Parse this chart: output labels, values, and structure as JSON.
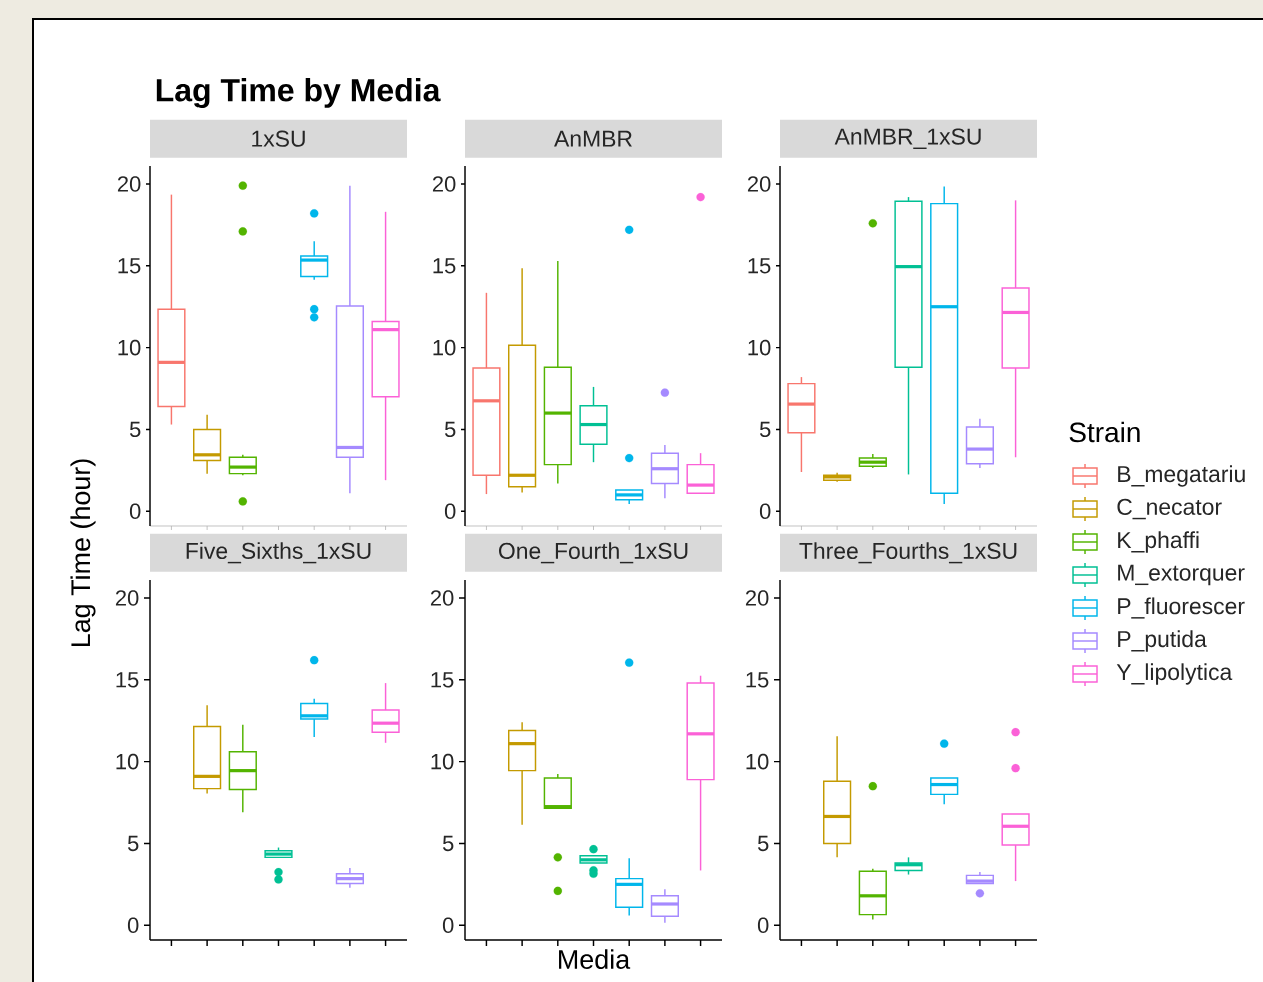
{
  "chart_data": [
    {
      "type": "box",
      "title": "1xSU",
      "ylabel": "Lag Time (hour)",
      "annotations": [
        "Lag Time by Media"
      ],
      "categories": [
        null,
        null,
        null,
        null,
        null,
        null,
        null
      ],
      "ylim": [
        -0.9,
        21.1
      ],
      "yticks": [
        0,
        5,
        10,
        15,
        20
      ],
      "tick_labels": "y",
      "legend": false,
      "series": [
        {
          "color": "#f8766d",
          "boxes": [
            {
              "low": 5.3,
              "q1": 6.4,
              "median": 9.1,
              "q3": 12.35,
              "high": 19.35
            },
            null,
            null,
            null,
            null,
            null,
            null
          ]
        },
        {
          "color": "#c49a00",
          "boxes": [
            null,
            {
              "low": 2.3,
              "q1": 3.1,
              "median": 3.45,
              "q3": 5.0,
              "high": 5.9
            },
            null,
            null,
            null,
            null,
            null
          ]
        },
        {
          "color": "#53b400",
          "boxes": [
            null,
            null,
            {
              "low": 2.2,
              "q1": 2.3,
              "median": 2.7,
              "q3": 3.3,
              "high": 3.45,
              "outliers": [
                19.9,
                17.1,
                0.6
              ]
            },
            null,
            null,
            null,
            null
          ]
        },
        {
          "color": "#00b6eb",
          "boxes": [
            null,
            null,
            null,
            null,
            {
              "low": 14.15,
              "q1": 14.35,
              "median": 15.35,
              "q3": 15.6,
              "high": 16.5,
              "outliers": [
                18.2,
                12.35,
                11.85
              ]
            },
            null,
            null
          ]
        },
        {
          "color": "#a58aff",
          "boxes": [
            null,
            null,
            null,
            null,
            null,
            {
              "low": 1.1,
              "q1": 3.3,
              "median": 3.9,
              "q3": 12.55,
              "high": 19.9
            },
            null
          ]
        },
        {
          "color": "#fb61d7",
          "boxes": [
            null,
            null,
            null,
            null,
            null,
            null,
            {
              "low": 1.9,
              "q1": 7.0,
              "median": 11.1,
              "q3": 11.6,
              "high": 18.3
            }
          ]
        }
      ]
    },
    {
      "type": "box",
      "title": "AnMBR",
      "categories": [
        null,
        null,
        null,
        null,
        null,
        null,
        null
      ],
      "ylim": [
        -0.9,
        21.1
      ],
      "yticks": [
        0,
        5,
        10,
        15,
        20
      ],
      "tick_labels": "y",
      "legend": false,
      "series": [
        {
          "color": "#f8766d",
          "boxes": [
            {
              "low": 1.05,
              "q1": 2.2,
              "median": 6.75,
              "q3": 8.75,
              "high": 13.35
            },
            null,
            null,
            null,
            null,
            null,
            null
          ]
        },
        {
          "color": "#c49a00",
          "boxes": [
            null,
            {
              "low": 1.15,
              "q1": 1.5,
              "median": 2.2,
              "q3": 10.15,
              "high": 14.85
            },
            null,
            null,
            null,
            null,
            null
          ]
        },
        {
          "color": "#53b400",
          "boxes": [
            null,
            null,
            {
              "low": 1.7,
              "q1": 2.85,
              "median": 6.0,
              "q3": 8.8,
              "high": 15.3
            },
            null,
            null,
            null,
            null
          ]
        },
        {
          "color": "#00c094",
          "boxes": [
            null,
            null,
            null,
            {
              "low": 3.0,
              "q1": 4.1,
              "median": 5.3,
              "q3": 6.45,
              "high": 7.6
            },
            null,
            null,
            null
          ]
        },
        {
          "color": "#00b6eb",
          "boxes": [
            null,
            null,
            null,
            null,
            {
              "low": 0.45,
              "q1": 0.7,
              "median": 1.0,
              "q3": 1.3,
              "high": 1.3,
              "outliers": [
                17.2,
                3.25
              ]
            },
            null,
            null
          ]
        },
        {
          "color": "#a58aff",
          "boxes": [
            null,
            null,
            null,
            null,
            null,
            {
              "low": 0.8,
              "q1": 1.7,
              "median": 2.6,
              "q3": 3.55,
              "high": 4.05,
              "outliers": [
                7.25
              ]
            },
            null
          ]
        },
        {
          "color": "#fb61d7",
          "boxes": [
            null,
            null,
            null,
            null,
            null,
            null,
            {
              "low": 1.1,
              "q1": 1.1,
              "median": 1.6,
              "q3": 2.85,
              "high": 3.55,
              "outliers": [
                19.2
              ]
            }
          ]
        }
      ]
    },
    {
      "type": "box",
      "title": "AnMBR_1xSU",
      "legend_title": "Strain",
      "categories": [
        null,
        null,
        null,
        null,
        null,
        null,
        null
      ],
      "ylim": [
        -0.9,
        21.1
      ],
      "yticks": [
        0,
        5,
        10,
        15,
        20
      ],
      "tick_labels": "y",
      "legend": "right",
      "series": [
        {
          "name": "B_megatariu",
          "color": "#f8766d",
          "boxes": [
            {
              "low": 2.4,
              "q1": 4.8,
              "median": 6.55,
              "q3": 7.8,
              "high": 8.2
            },
            null,
            null,
            null,
            null,
            null,
            null
          ]
        },
        {
          "name": "C_necator",
          "color": "#c49a00",
          "boxes": [
            null,
            {
              "low": 1.8,
              "q1": 1.9,
              "median": 2.1,
              "q3": 2.2,
              "high": 2.35
            },
            null,
            null,
            null,
            null,
            null
          ]
        },
        {
          "name": "K_phaffi",
          "color": "#53b400",
          "boxes": [
            null,
            null,
            {
              "low": 2.65,
              "q1": 2.75,
              "median": 3.0,
              "q3": 3.25,
              "high": 3.5,
              "outliers": [
                17.6
              ]
            },
            null,
            null,
            null,
            null
          ]
        },
        {
          "name": "M_extorquer",
          "color": "#00c094",
          "boxes": [
            null,
            null,
            null,
            {
              "low": 2.25,
              "q1": 8.8,
              "median": 14.95,
              "q3": 18.95,
              "high": 19.2
            },
            null,
            null,
            null
          ]
        },
        {
          "name": "P_fluorescer",
          "color": "#00b6eb",
          "boxes": [
            null,
            null,
            null,
            null,
            {
              "low": 0.45,
              "q1": 1.1,
              "median": 12.5,
              "q3": 18.8,
              "high": 19.85
            },
            null,
            null
          ]
        },
        {
          "name": "P_putida",
          "color": "#a58aff",
          "boxes": [
            null,
            null,
            null,
            null,
            null,
            {
              "low": 2.65,
              "q1": 2.9,
              "median": 3.8,
              "q3": 5.15,
              "high": 5.65
            },
            null
          ]
        },
        {
          "name": "Y_lipolytica",
          "color": "#fb61d7",
          "boxes": [
            null,
            null,
            null,
            null,
            null,
            null,
            {
              "low": 3.3,
              "q1": 8.75,
              "median": 12.15,
              "q3": 13.65,
              "high": 19.0
            }
          ]
        }
      ]
    },
    {
      "type": "box",
      "title": "Five_Sixths_1xSU",
      "categories": [
        null,
        null,
        null,
        null,
        null,
        null,
        null
      ],
      "ylim": [
        -0.9,
        21.1
      ],
      "yticks": [
        0,
        5,
        10,
        15,
        20
      ],
      "tick_labels": "y",
      "legend": false,
      "series": [
        {
          "color": "#c49a00",
          "boxes": [
            null,
            {
              "low": 8.05,
              "q1": 8.35,
              "median": 9.1,
              "q3": 12.15,
              "high": 13.45
            },
            null,
            null,
            null,
            null,
            null
          ]
        },
        {
          "color": "#53b400",
          "boxes": [
            null,
            null,
            {
              "low": 6.9,
              "q1": 8.3,
              "median": 9.45,
              "q3": 10.6,
              "high": 12.25
            },
            null,
            null,
            null,
            null
          ]
        },
        {
          "color": "#00c094",
          "boxes": [
            null,
            null,
            null,
            {
              "low": 4.15,
              "q1": 4.15,
              "median": 4.35,
              "q3": 4.55,
              "high": 4.75,
              "outliers": [
                3.25,
                2.8
              ]
            },
            null,
            null,
            null
          ]
        },
        {
          "color": "#00b6eb",
          "boxes": [
            null,
            null,
            null,
            null,
            {
              "low": 11.5,
              "q1": 12.6,
              "median": 12.8,
              "q3": 13.55,
              "high": 13.85,
              "outliers": [
                16.2
              ]
            },
            null,
            null
          ]
        },
        {
          "color": "#a58aff",
          "boxes": [
            null,
            null,
            null,
            null,
            null,
            {
              "low": 2.3,
              "q1": 2.55,
              "median": 2.85,
              "q3": 3.15,
              "high": 3.5
            },
            null
          ]
        },
        {
          "color": "#fb61d7",
          "boxes": [
            null,
            null,
            null,
            null,
            null,
            null,
            {
              "low": 11.15,
              "q1": 11.8,
              "median": 12.35,
              "q3": 13.15,
              "high": 14.8
            }
          ]
        }
      ]
    },
    {
      "type": "box",
      "title": "One_Fourth_1xSU",
      "xlabel": "Media",
      "categories": [
        null,
        null,
        null,
        null,
        null,
        null,
        null
      ],
      "ylim": [
        -0.9,
        21.1
      ],
      "yticks": [
        0,
        5,
        10,
        15,
        20
      ],
      "tick_labels": "y",
      "legend": false,
      "series": [
        {
          "color": "#c49a00",
          "boxes": [
            null,
            {
              "low": 6.15,
              "q1": 9.45,
              "median": 11.1,
              "q3": 11.9,
              "high": 12.4
            },
            null,
            null,
            null,
            null,
            null
          ]
        },
        {
          "color": "#53b400",
          "boxes": [
            null,
            null,
            {
              "low": 7.15,
              "q1": 7.15,
              "median": 7.25,
              "q3": 9.0,
              "high": 9.25,
              "outliers": [
                4.15,
                2.1
              ]
            },
            null,
            null,
            null,
            null
          ]
        },
        {
          "color": "#00c094",
          "boxes": [
            null,
            null,
            null,
            {
              "low": 3.8,
              "q1": 3.8,
              "median": 4.0,
              "q3": 4.25,
              "high": 4.25,
              "outliers": [
                4.65,
                3.35,
                3.15
              ]
            },
            null,
            null,
            null
          ]
        },
        {
          "color": "#00b6eb",
          "boxes": [
            null,
            null,
            null,
            null,
            {
              "low": 0.6,
              "q1": 1.1,
              "median": 2.5,
              "q3": 2.85,
              "high": 4.1,
              "outliers": [
                16.05
              ]
            },
            null,
            null
          ]
        },
        {
          "color": "#a58aff",
          "boxes": [
            null,
            null,
            null,
            null,
            null,
            {
              "low": 0.15,
              "q1": 0.55,
              "median": 1.3,
              "q3": 1.8,
              "high": 2.2
            },
            null
          ]
        },
        {
          "color": "#fb61d7",
          "boxes": [
            null,
            null,
            null,
            null,
            null,
            null,
            {
              "low": 3.35,
              "q1": 8.9,
              "median": 11.7,
              "q3": 14.8,
              "high": 15.25
            }
          ]
        }
      ]
    },
    {
      "type": "box",
      "title": "Three_Fourths_1xSU",
      "categories": [
        null,
        null,
        null,
        null,
        null,
        null,
        null
      ],
      "ylim": [
        -0.9,
        21.1
      ],
      "yticks": [
        0,
        5,
        10,
        15,
        20
      ],
      "tick_labels": "y",
      "legend": false,
      "series": [
        {
          "color": "#c49a00",
          "boxes": [
            null,
            {
              "low": 4.15,
              "q1": 5.0,
              "median": 6.65,
              "q3": 8.8,
              "high": 11.55
            },
            null,
            null,
            null,
            null,
            null
          ]
        },
        {
          "color": "#53b400",
          "boxes": [
            null,
            null,
            {
              "low": 0.35,
              "q1": 0.65,
              "median": 1.8,
              "q3": 3.3,
              "high": 3.45,
              "outliers": [
                8.5
              ]
            },
            null,
            null,
            null,
            null
          ]
        },
        {
          "color": "#00c094",
          "boxes": [
            null,
            null,
            null,
            {
              "low": 3.1,
              "q1": 3.35,
              "median": 3.7,
              "q3": 3.8,
              "high": 4.15
            },
            null,
            null,
            null
          ]
        },
        {
          "color": "#00b6eb",
          "boxes": [
            null,
            null,
            null,
            null,
            {
              "low": 7.4,
              "q1": 8.0,
              "median": 8.6,
              "q3": 9.0,
              "high": 9.0,
              "outliers": [
                11.1
              ]
            },
            null,
            null
          ]
        },
        {
          "color": "#a58aff",
          "boxes": [
            null,
            null,
            null,
            null,
            null,
            {
              "low": 2.55,
              "q1": 2.55,
              "median": 2.7,
              "q3": 3.05,
              "high": 3.25,
              "outliers": [
                1.95
              ]
            },
            null
          ]
        },
        {
          "color": "#fb61d7",
          "boxes": [
            null,
            null,
            null,
            null,
            null,
            null,
            {
              "low": 2.7,
              "q1": 4.9,
              "median": 6.05,
              "q3": 6.8,
              "high": 6.8,
              "outliers": [
                11.8,
                9.6
              ]
            }
          ]
        }
      ]
    }
  ]
}
